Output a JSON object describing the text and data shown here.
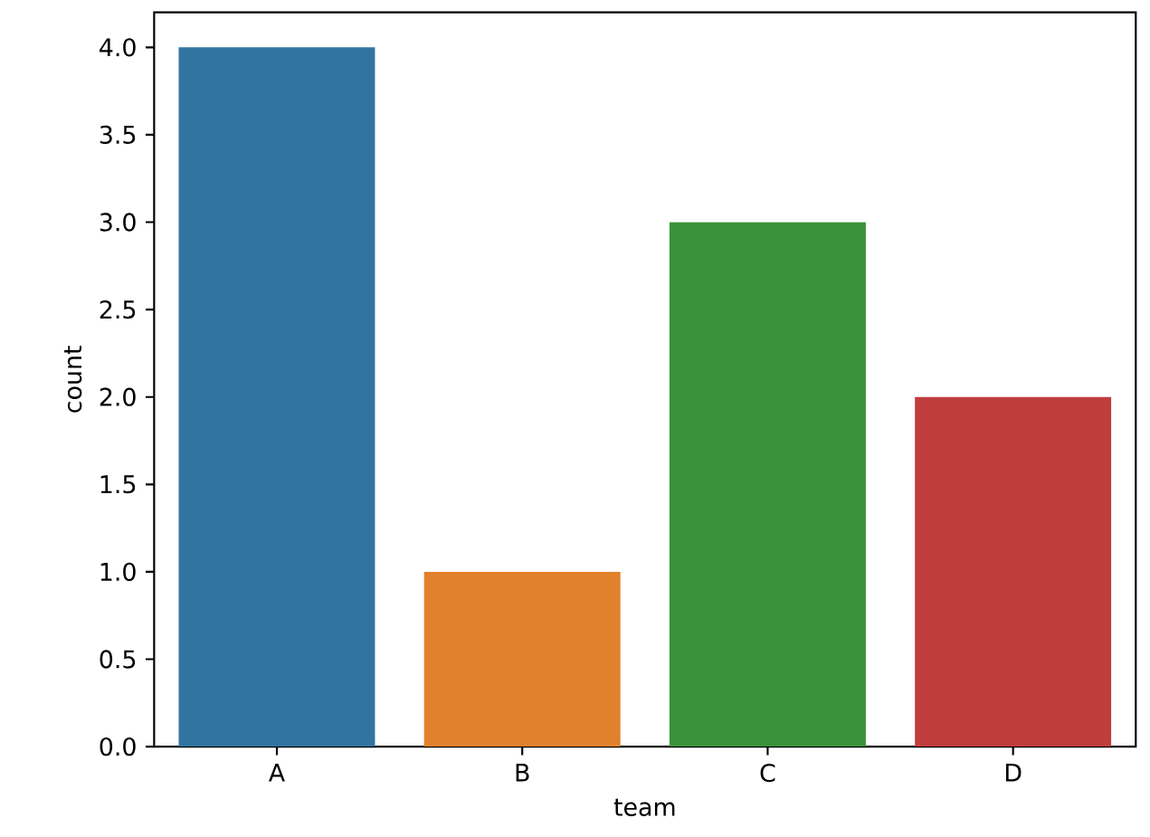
{
  "chart_data": {
    "type": "bar",
    "xlabel": "team",
    "ylabel": "count",
    "categories": [
      "A",
      "B",
      "C",
      "D"
    ],
    "values": [
      4,
      1,
      3,
      2
    ],
    "colors": [
      "#3274a1",
      "#e1812c",
      "#3a923a",
      "#c03d3e"
    ],
    "ylim": [
      0,
      4.2
    ],
    "yticks": [
      {
        "value": 0,
        "label": "0.0"
      },
      {
        "value": 0.5,
        "label": "0.5"
      },
      {
        "value": 1,
        "label": "1.0"
      },
      {
        "value": 1.5,
        "label": "1.5"
      },
      {
        "value": 2,
        "label": "2.0"
      },
      {
        "value": 2.5,
        "label": "2.5"
      },
      {
        "value": 3,
        "label": "3.0"
      },
      {
        "value": 3.5,
        "label": "3.5"
      },
      {
        "value": 4,
        "label": "4.0"
      }
    ]
  }
}
